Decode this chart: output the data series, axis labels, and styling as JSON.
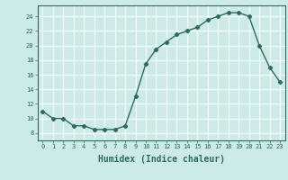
{
  "x": [
    0,
    1,
    2,
    3,
    4,
    5,
    6,
    7,
    8,
    9,
    10,
    11,
    12,
    13,
    14,
    15,
    16,
    17,
    18,
    19,
    20,
    21,
    22,
    23
  ],
  "y": [
    11,
    10,
    10,
    9,
    9,
    8.5,
    8.5,
    8.5,
    9,
    13,
    17.5,
    19.5,
    20.5,
    21.5,
    22,
    22.5,
    23.5,
    24,
    24.5,
    24.5,
    24,
    20,
    17,
    15
  ],
  "xlabel": "Humidex (Indice chaleur)",
  "xlim": [
    -0.5,
    23.5
  ],
  "ylim": [
    7,
    25.5
  ],
  "yticks": [
    8,
    10,
    12,
    14,
    16,
    18,
    20,
    22,
    24
  ],
  "xticks": [
    0,
    1,
    2,
    3,
    4,
    5,
    6,
    7,
    8,
    9,
    10,
    11,
    12,
    13,
    14,
    15,
    16,
    17,
    18,
    19,
    20,
    21,
    22,
    23
  ],
  "line_color": "#2e6b5e",
  "marker": "D",
  "marker_size": 2.2,
  "bg_color": "#cceae7",
  "grid_color": "#ffffff",
  "tick_fontsize": 5.0,
  "xlabel_fontsize": 7.0,
  "linewidth": 1.0
}
